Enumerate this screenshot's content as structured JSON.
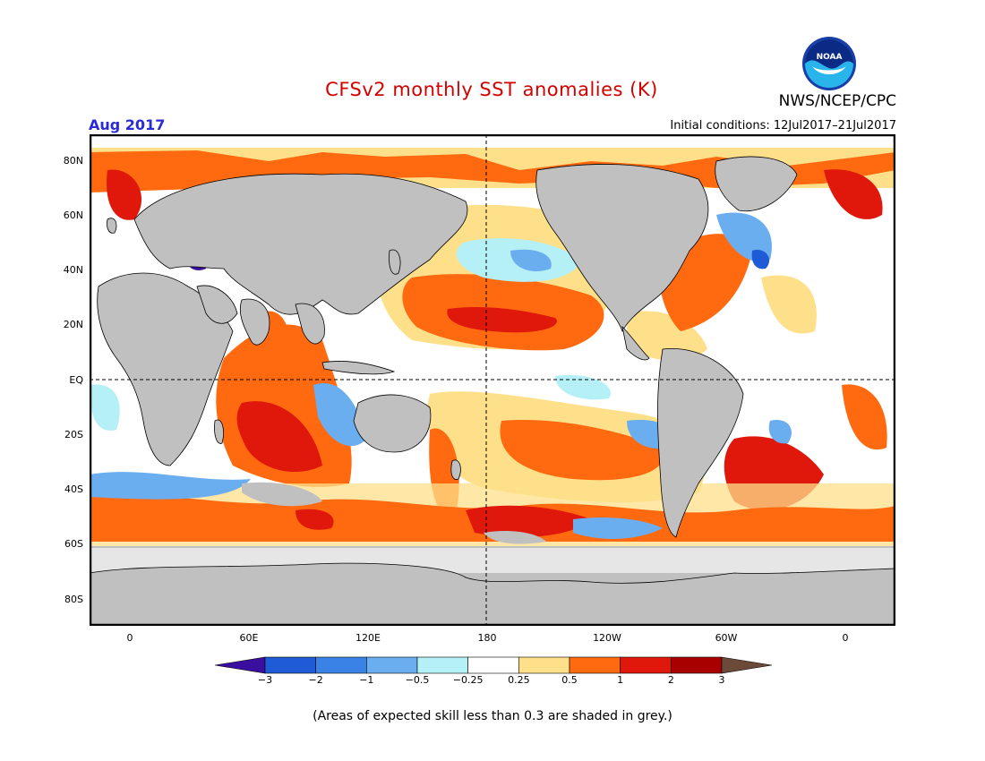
{
  "title": "CFSv2 monthly SST anomalies (K)",
  "agency": "NWS/NCEP/CPC",
  "logo_text": "NOAA",
  "month": "Aug 2017",
  "initial_conditions": "Initial conditions: 12Jul2017–21Jul2017",
  "lat_labels": [
    "80N",
    "60N",
    "40N",
    "20N",
    "EQ",
    "20S",
    "40S",
    "60S",
    "80S"
  ],
  "lon_labels": [
    "0",
    "60E",
    "120E",
    "180",
    "120W",
    "60W",
    "0"
  ],
  "colorbar": {
    "ticks": [
      "−3",
      "−2",
      "−1",
      "−0.5",
      "−0.25",
      "0.25",
      "0.5",
      "1",
      "2",
      "3"
    ],
    "colors": [
      "#3a0fa0",
      "#1f5bd6",
      "#3b82e6",
      "#6aaeef",
      "#b4f0f6",
      "#ffffff",
      "#ffe08a",
      "#ff6a10",
      "#e0180c",
      "#a80000",
      "#6b4a3a"
    ]
  },
  "note": "(Areas of expected skill less than 0.3 are shaded in grey.)",
  "colors": {
    "title": "#d40000",
    "month": "#2b2bd6",
    "land": "#c0c0c0",
    "ocean_warm": "#ff6a10",
    "ocean_hot": "#e0180c",
    "ocean_cool": "#6aaeef"
  }
}
